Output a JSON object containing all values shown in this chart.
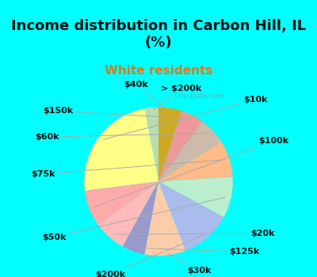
{
  "title": "Income distribution in Carbon Hill, IL\n(%)",
  "subtitle": "White residents",
  "title_color": "#111111",
  "subtitle_color": "#d47c20",
  "bg_cyan": "#00ffff",
  "bg_chart": "#c8ead8",
  "labels": [
    "> $200k",
    "$10k",
    "$100k",
    "$20k",
    "$125k",
    "$30k",
    "$200k",
    "$50k",
    "$75k",
    "$60k",
    "$150k",
    "$40k"
  ],
  "values": [
    3,
    24,
    8,
    7,
    5,
    9,
    11,
    9,
    8,
    6,
    5,
    5
  ],
  "colors": [
    "#b8ddb0",
    "#ffff88",
    "#ffaaaa",
    "#ffbbbb",
    "#9999cc",
    "#ffccaa",
    "#aabbee",
    "#bbeecc",
    "#ffbb88",
    "#ccbbaa",
    "#ee9999",
    "#ccaa22"
  ],
  "label_fontsize": 8,
  "title_fontsize": 13,
  "subtitle_fontsize": 11,
  "watermark": "City-Data.com"
}
